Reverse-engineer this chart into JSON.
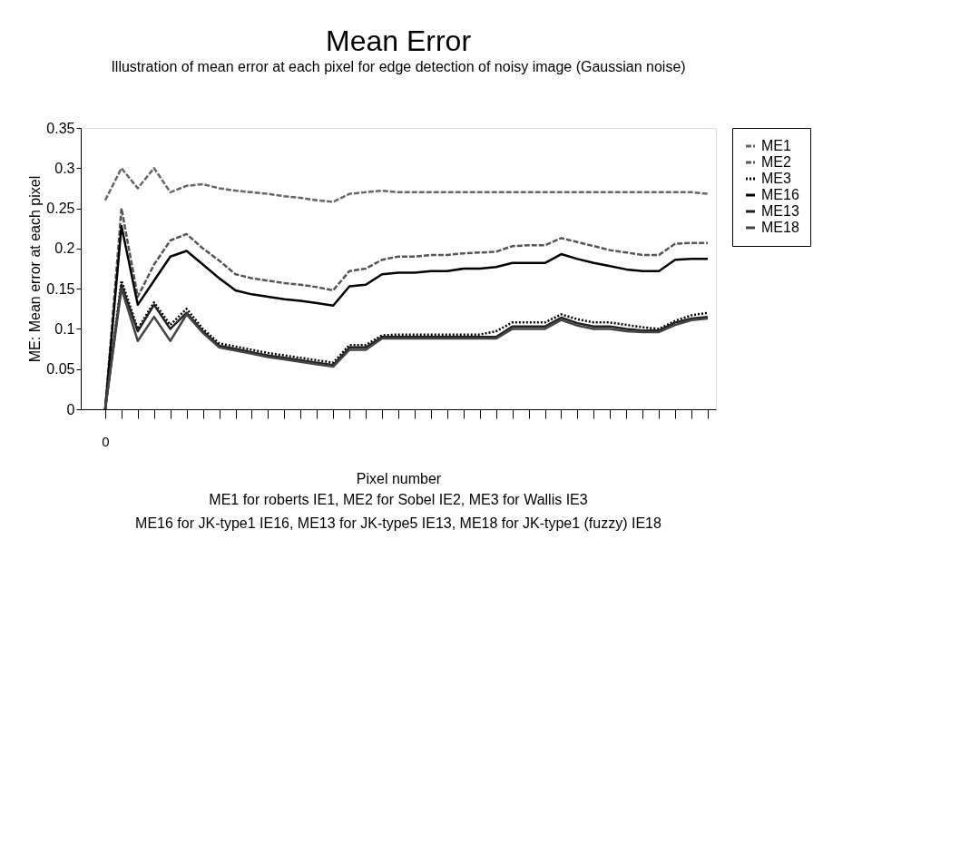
{
  "chart_data": {
    "type": "line",
    "title": "Mean Error",
    "subtitle": "Illustration of mean error at each pixel for edge detection of noisy image (Gaussian noise)",
    "xlabel": "Pixel number",
    "ylabel": "ME: Mean error at each pixel",
    "categories": [
      "0",
      null,
      null,
      null,
      null,
      null,
      null,
      null,
      null,
      null,
      null,
      null,
      null,
      null,
      null,
      null,
      null,
      null,
      null,
      null,
      null,
      null,
      null,
      null,
      null,
      null,
      null,
      null,
      null,
      null,
      null,
      null,
      null,
      null,
      null,
      null,
      null,
      null
    ],
    "series": [
      {
        "name": "ME1",
        "color": "#666666",
        "line_style": "dashed",
        "values": [
          0.26,
          0.3,
          0.275,
          0.3,
          0.27,
          0.278,
          0.28,
          0.275,
          0.272,
          0.27,
          0.268,
          0.265,
          0.263,
          0.26,
          0.258,
          0.268,
          0.27,
          0.272,
          0.27,
          0.27,
          0.27,
          0.27,
          0.27,
          0.27,
          0.27,
          0.27,
          0.27,
          0.27,
          0.27,
          0.27,
          0.27,
          0.27,
          0.27,
          0.27,
          0.27,
          0.27,
          0.27,
          0.268
        ]
      },
      {
        "name": "ME2",
        "color": "#555555",
        "line_style": "dashed",
        "values": [
          0,
          0.25,
          0.14,
          0.18,
          0.21,
          0.218,
          0.2,
          0.185,
          0.168,
          0.163,
          0.16,
          0.157,
          0.155,
          0.152,
          0.148,
          0.172,
          0.175,
          0.186,
          0.19,
          0.19,
          0.192,
          0.192,
          0.194,
          0.195,
          0.196,
          0.203,
          0.204,
          0.204,
          0.213,
          0.208,
          0.203,
          0.198,
          0.195,
          0.192,
          0.192,
          0.206,
          0.207,
          0.207
        ]
      },
      {
        "name": "ME3",
        "color": "#000000",
        "line_style": "dotted",
        "values": [
          0,
          0.16,
          0.1,
          0.133,
          0.105,
          0.125,
          0.1,
          0.082,
          0.078,
          0.074,
          0.07,
          0.067,
          0.064,
          0.061,
          0.058,
          0.08,
          0.08,
          0.092,
          0.093,
          0.093,
          0.093,
          0.093,
          0.093,
          0.093,
          0.097,
          0.108,
          0.108,
          0.108,
          0.118,
          0.112,
          0.108,
          0.108,
          0.105,
          0.102,
          0.1,
          0.11,
          0.117,
          0.12
        ]
      },
      {
        "name": "ME16",
        "color": "#000000",
        "line_style": "solid",
        "values": [
          0,
          0.228,
          0.13,
          0.16,
          0.19,
          0.197,
          0.18,
          0.163,
          0.148,
          0.143,
          0.14,
          0.137,
          0.135,
          0.132,
          0.129,
          0.153,
          0.155,
          0.168,
          0.17,
          0.17,
          0.172,
          0.172,
          0.175,
          0.175,
          0.177,
          0.182,
          0.182,
          0.182,
          0.193,
          0.187,
          0.182,
          0.178,
          0.174,
          0.172,
          0.172,
          0.186,
          0.187,
          0.187
        ]
      },
      {
        "name": "ME13",
        "color": "#222222",
        "line_style": "solid",
        "values": [
          0,
          0.155,
          0.097,
          0.13,
          0.1,
          0.12,
          0.097,
          0.079,
          0.075,
          0.071,
          0.067,
          0.064,
          0.061,
          0.058,
          0.055,
          0.077,
          0.077,
          0.09,
          0.09,
          0.09,
          0.09,
          0.09,
          0.09,
          0.09,
          0.09,
          0.103,
          0.103,
          0.103,
          0.114,
          0.107,
          0.103,
          0.103,
          0.1,
          0.098,
          0.098,
          0.108,
          0.113,
          0.115
        ]
      },
      {
        "name": "ME18",
        "color": "#444444",
        "line_style": "solid",
        "values": [
          0,
          0.15,
          0.085,
          0.115,
          0.085,
          0.118,
          0.095,
          0.077,
          0.073,
          0.069,
          0.065,
          0.062,
          0.059,
          0.056,
          0.053,
          0.074,
          0.074,
          0.088,
          0.088,
          0.088,
          0.088,
          0.088,
          0.088,
          0.088,
          0.088,
          0.1,
          0.1,
          0.1,
          0.111,
          0.104,
          0.1,
          0.1,
          0.097,
          0.096,
          0.096,
          0.105,
          0.111,
          0.113
        ]
      }
    ],
    "ylim": [
      0,
      0.35
    ],
    "yticks": [
      0,
      0.05,
      0.1,
      0.15,
      0.2,
      0.25,
      0.3,
      0.35
    ],
    "grid": false,
    "legend": "right",
    "marker": "none",
    "annotations": [
      "ME1 for roberts IE1, ME2 for Sobel IE2,  ME3 for Wallis IE3",
      "ME16 for JK-type1 IE16, ME13 for JK-type5 IE13, ME18 for JK-type1 (fuzzy) IE18"
    ]
  }
}
